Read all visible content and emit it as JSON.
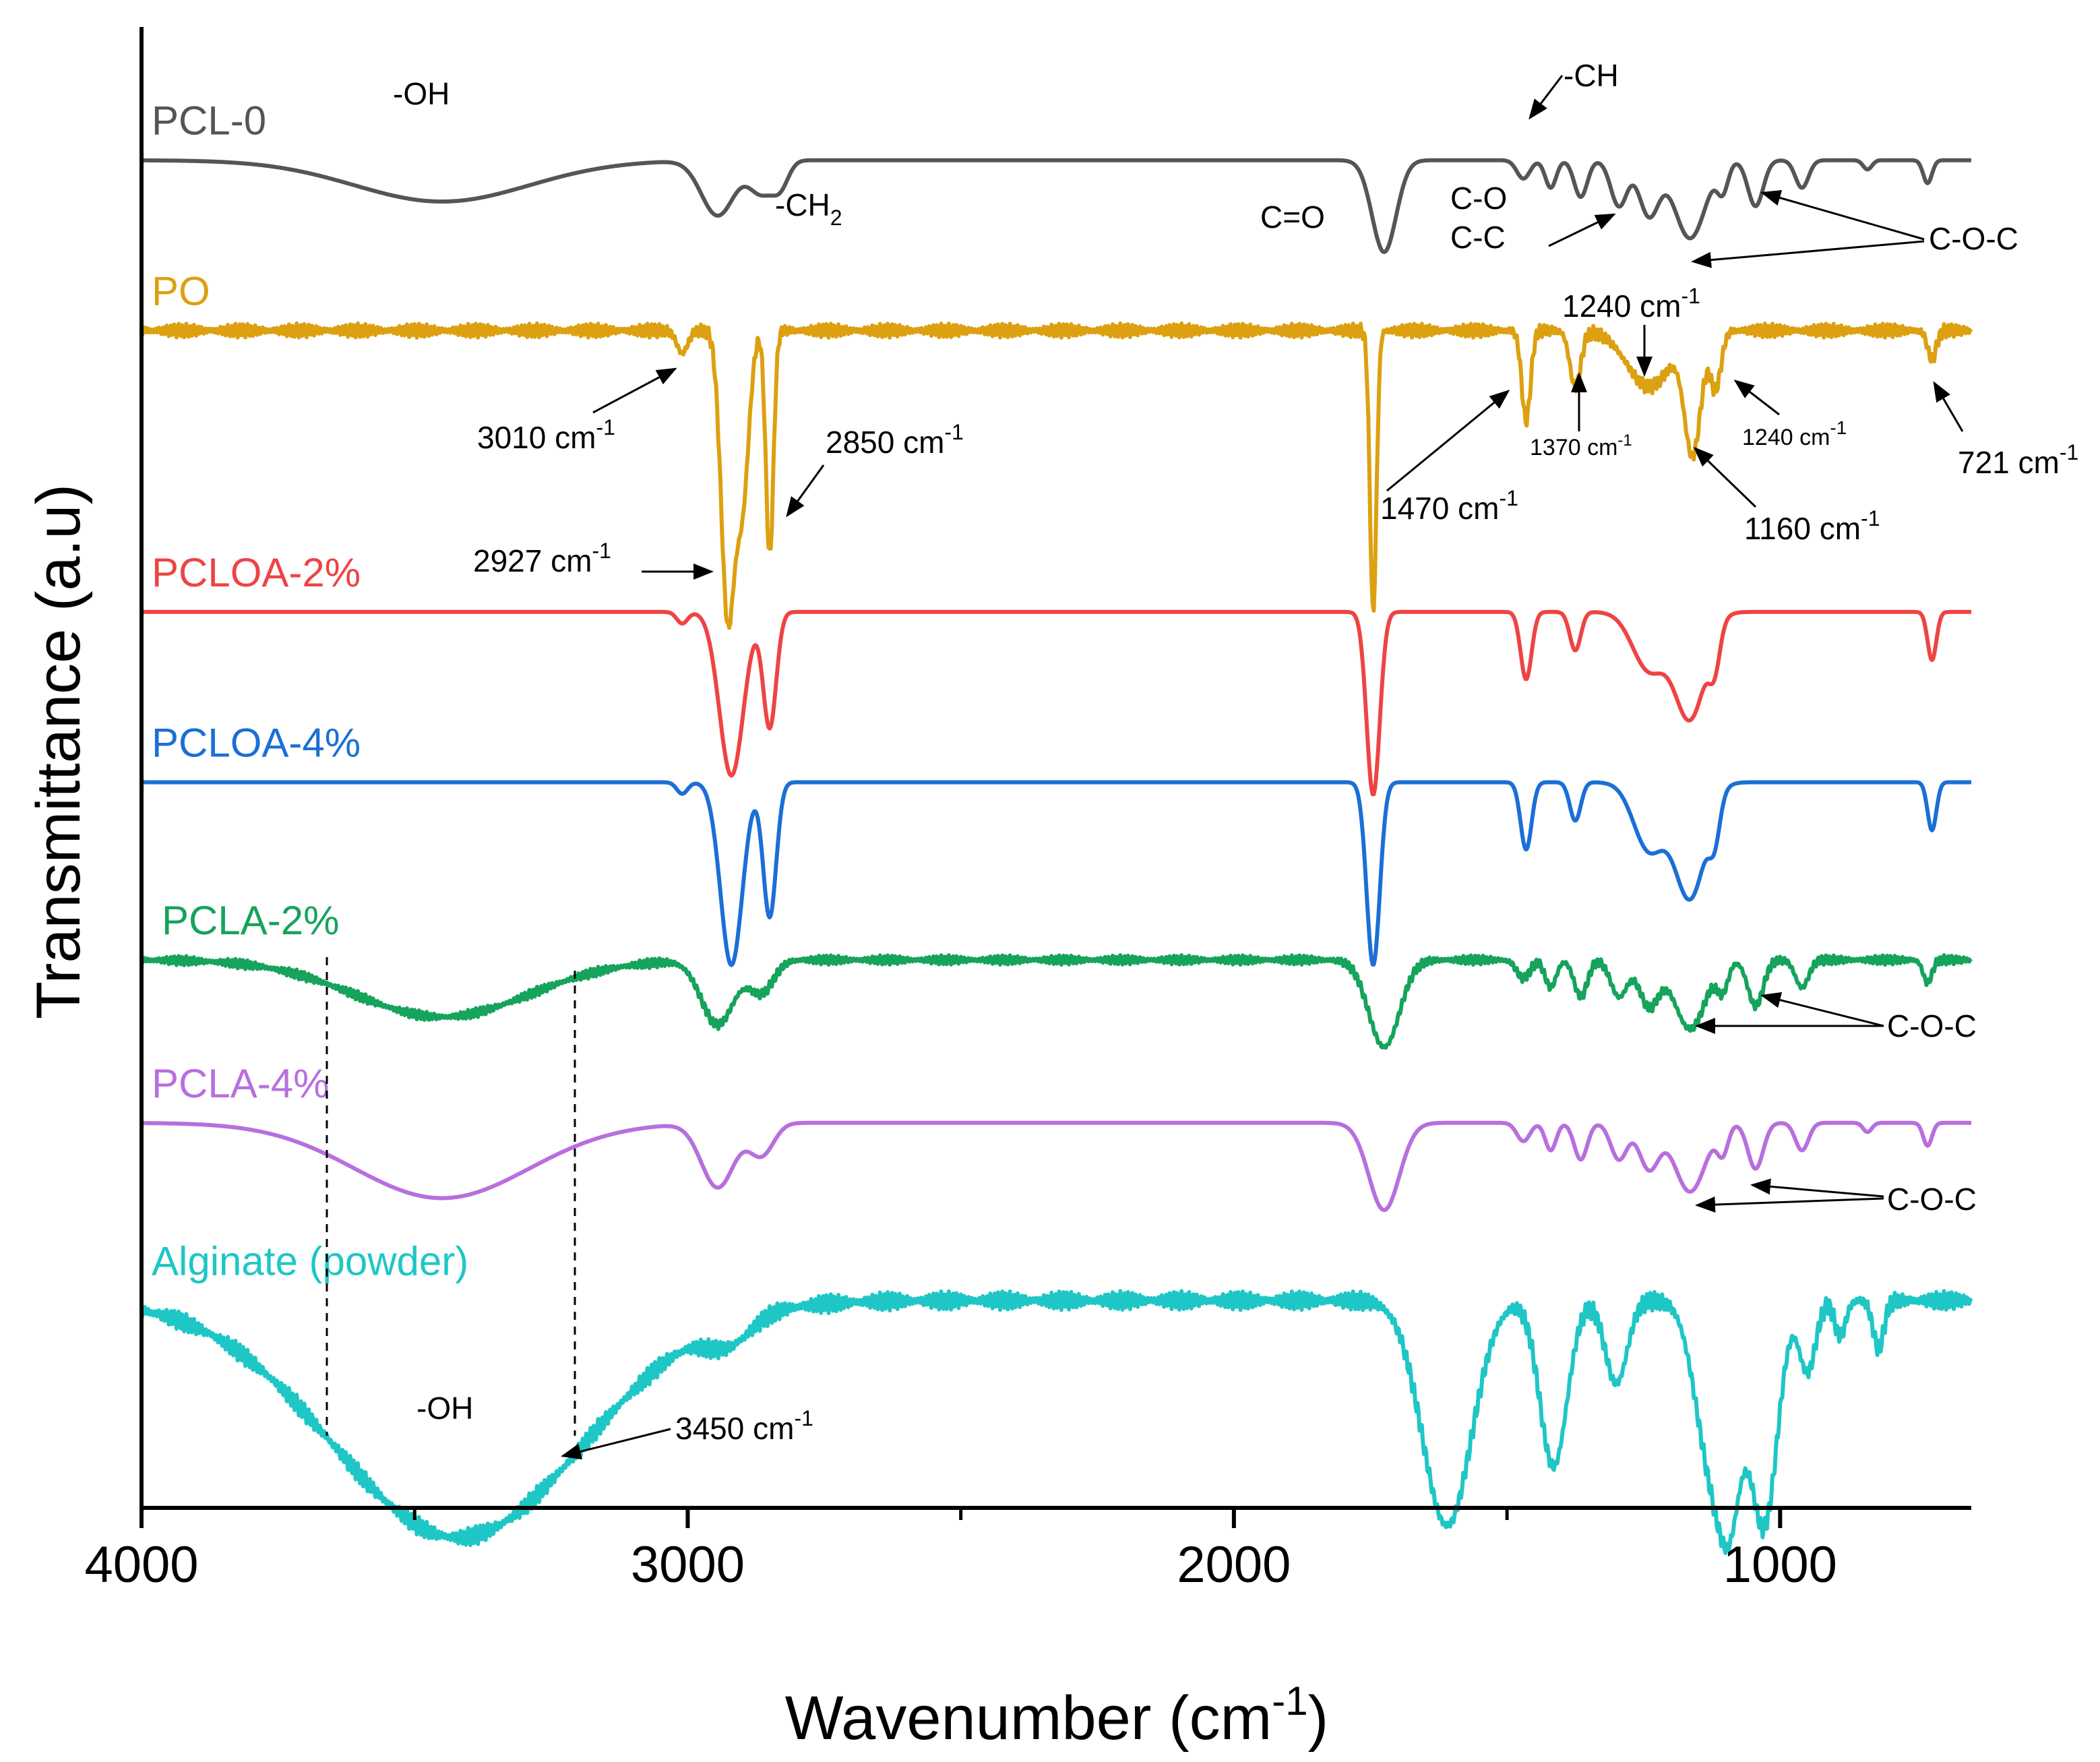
{
  "chart_data": {
    "type": "line",
    "title": "",
    "xlabel": "Wavenumber (cm-1)",
    "ylabel": "Transmittance (a.u)",
    "xlim": [
      4000,
      650
    ],
    "x_reversed": true,
    "xticks": [
      4000,
      3000,
      2000,
      1000
    ],
    "xticks_minor": [
      3500,
      2500,
      1500
    ],
    "grid": false,
    "legend": "labels placed above each curve",
    "series": [
      {
        "name": "PCL-0",
        "color": "#555555",
        "offset": 0.91,
        "amp": 0.062,
        "base_ripple": 0.0,
        "peaks": [
          [
            3450,
            0.45,
            160
          ],
          [
            2945,
            0.6,
            30
          ],
          [
            2865,
            0.35,
            22
          ],
          [
            2830,
            0.25,
            15
          ],
          [
            1725,
            1.0,
            22
          ],
          [
            1470,
            0.2,
            12
          ],
          [
            1420,
            0.3,
            10
          ],
          [
            1365,
            0.4,
            12
          ],
          [
            1295,
            0.5,
            15
          ],
          [
            1240,
            0.6,
            18
          ],
          [
            1165,
            0.85,
            28
          ],
          [
            1105,
            0.3,
            10
          ],
          [
            1045,
            0.5,
            14
          ],
          [
            960,
            0.3,
            12
          ],
          [
            840,
            0.1,
            8
          ],
          [
            730,
            0.25,
            8
          ]
        ]
      },
      {
        "name": "PO",
        "color": "#dca010",
        "offset": 0.795,
        "amp": 0.19,
        "base_ripple": 0.003,
        "peaks": [
          [
            3010,
            0.08,
            10
          ],
          [
            2927,
            1.0,
            12
          ],
          [
            2900,
            0.6,
            12
          ],
          [
            2850,
            0.8,
            7
          ],
          [
            1745,
            1.0,
            6
          ],
          [
            1465,
            0.32,
            8
          ],
          [
            1375,
            0.2,
            10
          ],
          [
            1240,
            0.2,
            40
          ],
          [
            1160,
            0.42,
            15
          ],
          [
            1118,
            0.2,
            10
          ],
          [
            722,
            0.1,
            8
          ]
        ]
      },
      {
        "name": "PCLOA-2%",
        "color": "#ee4444",
        "offset": 0.605,
        "amp": 0.13,
        "base_ripple": 0.0,
        "peaks": [
          [
            3010,
            0.06,
            10
          ],
          [
            2920,
            0.85,
            22
          ],
          [
            2850,
            0.6,
            12
          ],
          [
            1745,
            0.95,
            12
          ],
          [
            1465,
            0.35,
            10
          ],
          [
            1375,
            0.2,
            10
          ],
          [
            1240,
            0.3,
            30
          ],
          [
            1165,
            0.55,
            28
          ],
          [
            1120,
            0.2,
            10
          ],
          [
            722,
            0.25,
            8
          ]
        ]
      },
      {
        "name": "PCLOA-4%",
        "color": "#1b6fd6",
        "offset": 0.49,
        "amp": 0.13,
        "base_ripple": 0.0,
        "peaks": [
          [
            3010,
            0.06,
            10
          ],
          [
            2920,
            0.95,
            20
          ],
          [
            2850,
            0.7,
            12
          ],
          [
            1745,
            0.95,
            12
          ],
          [
            1465,
            0.35,
            10
          ],
          [
            1375,
            0.2,
            10
          ],
          [
            1240,
            0.35,
            28
          ],
          [
            1165,
            0.6,
            28
          ],
          [
            1120,
            0.2,
            10
          ],
          [
            722,
            0.25,
            8
          ]
        ]
      },
      {
        "name": "PCLA-2%",
        "color": "#16a35c",
        "offset": 0.37,
        "amp": 0.062,
        "base_ripple": 0.002,
        "peaks": [
          [
            3450,
            0.62,
            160
          ],
          [
            2945,
            0.7,
            30
          ],
          [
            2865,
            0.35,
            22
          ],
          [
            1725,
            0.95,
            28
          ],
          [
            1470,
            0.2,
            12
          ],
          [
            1420,
            0.3,
            10
          ],
          [
            1365,
            0.4,
            12
          ],
          [
            1295,
            0.4,
            15
          ],
          [
            1240,
            0.5,
            18
          ],
          [
            1165,
            0.75,
            28
          ],
          [
            1105,
            0.3,
            10
          ],
          [
            1045,
            0.5,
            14
          ],
          [
            960,
            0.3,
            12
          ],
          [
            730,
            0.25,
            8
          ]
        ]
      },
      {
        "name": "PCLA-4%",
        "color": "#b86fde",
        "offset": 0.26,
        "amp": 0.062,
        "base_ripple": 0.0,
        "peaks": [
          [
            3450,
            0.82,
            160
          ],
          [
            2945,
            0.7,
            30
          ],
          [
            2865,
            0.35,
            22
          ],
          [
            1725,
            0.95,
            28
          ],
          [
            1470,
            0.2,
            12
          ],
          [
            1420,
            0.3,
            10
          ],
          [
            1365,
            0.4,
            12
          ],
          [
            1295,
            0.4,
            15
          ],
          [
            1240,
            0.5,
            18
          ],
          [
            1165,
            0.75,
            28
          ],
          [
            1105,
            0.3,
            10
          ],
          [
            1045,
            0.5,
            14
          ],
          [
            960,
            0.3,
            12
          ],
          [
            840,
            0.1,
            8
          ],
          [
            730,
            0.25,
            8
          ]
        ]
      },
      {
        "name": "Alginate (powder)",
        "color": "#1fc6c6",
        "offset": 0.14,
        "amp": 0.16,
        "base_ripple": 0.004,
        "peaks": [
          [
            3420,
            1.0,
            230
          ],
          [
            2925,
            0.1,
            40
          ],
          [
            1610,
            0.95,
            45
          ],
          [
            1415,
            0.7,
            25
          ],
          [
            1300,
            0.35,
            20
          ],
          [
            1125,
            0.7,
            30
          ],
          [
            1090,
            0.6,
            20
          ],
          [
            1030,
            0.95,
            25
          ],
          [
            950,
            0.3,
            15
          ],
          [
            890,
            0.15,
            10
          ],
          [
            820,
            0.2,
            10
          ]
        ]
      }
    ],
    "annotations": [
      {
        "text": "-OH"
      },
      {
        "text": "-CH"
      },
      {
        "text": "-CH",
        "sub": "2"
      },
      {
        "text": "C=O"
      },
      {
        "text": "C-O"
      },
      {
        "text": "C-C"
      },
      {
        "text": "C-O-C"
      },
      {
        "text": "3010 cm",
        "sup": "-1"
      },
      {
        "text": "2850 cm",
        "sup": "-1"
      },
      {
        "text": "2927 cm",
        "sup": "-1"
      },
      {
        "text": "1240 cm",
        "sup": "-1"
      },
      {
        "text": "1370 cm",
        "sup": "-1"
      },
      {
        "text": "1240 cm",
        "sup": "-1"
      },
      {
        "text": "1470 cm",
        "sup": "-1"
      },
      {
        "text": "1160 cm",
        "sup": "-1"
      },
      {
        "text": "721 cm",
        "sup": "-1"
      },
      {
        "text": "C-O-C"
      },
      {
        "text": "C-O-C"
      },
      {
        "text": "-OH"
      },
      {
        "text": "3450 cm",
        "sup": "-1"
      }
    ]
  },
  "xaxis_title": {
    "main": "Wavenumber (cm",
    "sup": "-1",
    "close": ")"
  },
  "yaxis_title": "Transmittance (a.u)"
}
